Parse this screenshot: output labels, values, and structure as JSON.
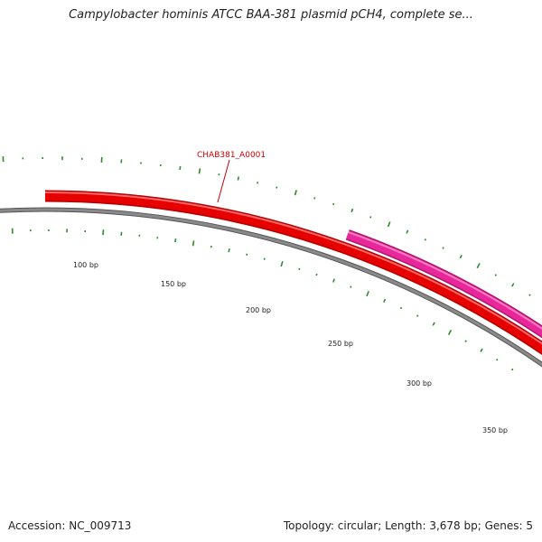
{
  "title": "Campylobacter hominis ATCC BAA-381 plasmid pCH4, complete se...",
  "footer": {
    "accession": "Accession: NC_009713",
    "summary": "Topology: circular; Length: 3,678 bp; Genes: 5"
  },
  "plasmid": {
    "topology": "circular",
    "length_bp": 3678,
    "gene_count": 5
  },
  "colors": {
    "backbone": "#8a8a8a",
    "gene_forward": "#e60000",
    "gene_forward_alt": "#e8289a",
    "gc_ticks": "#2e8b2e",
    "label": "#cc0000"
  },
  "ruler_labels": [
    "100 bp",
    "150 bp",
    "200 bp",
    "250 bp",
    "300 bp",
    "350 bp"
  ],
  "genes": [
    {
      "name": "CHAB381_A0001",
      "color": "#e60000",
      "labeled": true
    },
    {
      "name": "",
      "color": "#e8289a",
      "labeled": false
    }
  ]
}
